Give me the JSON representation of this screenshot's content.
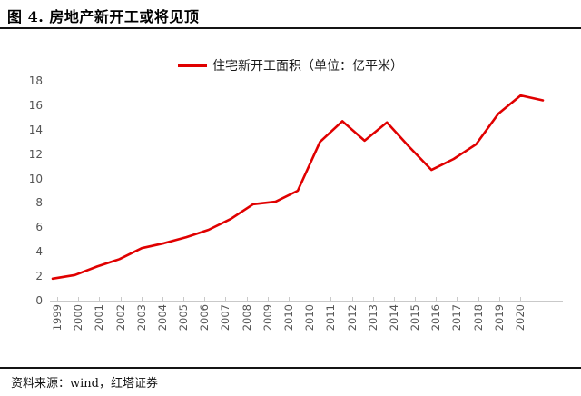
{
  "header": {
    "title": "图 4. 房地产新开工或将见顶"
  },
  "footer": {
    "source": "资料来源：wind，红塔证券"
  },
  "chart_data": {
    "type": "line",
    "title": "图 4. 房地产新开工或将见顶",
    "legend": [
      "住宅新开工面积（单位：亿平米）"
    ],
    "legend_position": "top-center",
    "categories": [
      "1999",
      "2000",
      "2001",
      "2002",
      "2003",
      "2004",
      "2005",
      "2006",
      "2007",
      "2008",
      "2009",
      "2010",
      "2010",
      "2011",
      "2012",
      "2013",
      "2014",
      "2015",
      "2016",
      "2017",
      "2018",
      "2019",
      "2020"
    ],
    "series": [
      {
        "name": "住宅新开工面积（单位：亿平米）",
        "color": "#e00000",
        "values": [
          1.8,
          2.1,
          2.8,
          3.4,
          4.3,
          4.7,
          5.2,
          5.8,
          6.7,
          7.9,
          8.1,
          9.0,
          13.0,
          14.7,
          13.1,
          14.6,
          12.6,
          10.7,
          11.6,
          12.8,
          15.3,
          16.8,
          16.4
        ]
      }
    ],
    "xlabel": "",
    "ylabel": "",
    "ylim": [
      0,
      18
    ],
    "y_ticks": [
      0,
      2,
      4,
      6,
      8,
      10,
      12,
      14,
      16,
      18
    ],
    "grid": "off",
    "x_label_rotation": -90
  },
  "colors": {
    "line": "#e00000",
    "axis": "#c9c9c9",
    "tick_label": "#555555",
    "rule": "#141414"
  }
}
